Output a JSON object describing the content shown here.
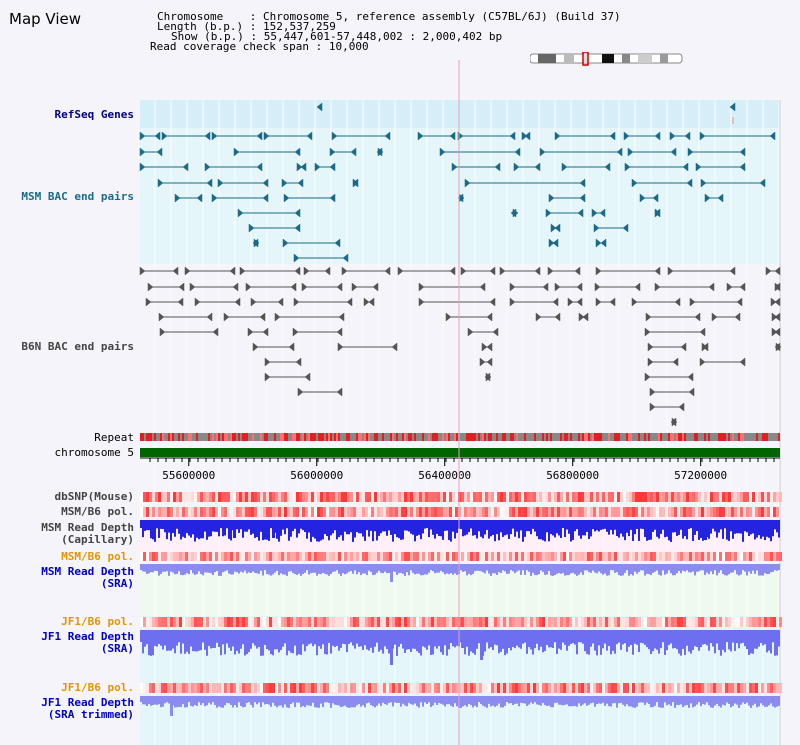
{
  "page": {
    "title": "Map View"
  },
  "info": {
    "chromosome_label": "Chromosome",
    "chromosome_value": "Chromosome 5, reference assembly (C57BL/6J) (Build 37)",
    "length_label": "Length (b.p.)",
    "length_value": "152,537,259",
    "show_label": "Show (b.p.)",
    "show_value": "55,447,601-57,448,002 : 2,000,402 bp",
    "coverage_label": "Read coverage check span",
    "coverage_value": "10,000"
  },
  "tracks": {
    "refseq": {
      "label": "RefSeq Genes",
      "color": "#000080"
    },
    "msm_bac": {
      "label": "MSM BAC end pairs",
      "color": "#1a6b8a"
    },
    "b6n_bac": {
      "label": "B6N BAC end pairs",
      "color": "#444444"
    },
    "repeat": {
      "label": "Repeat"
    },
    "chromosome": {
      "label": "chromosome 5",
      "color": "#006400"
    },
    "dbsnp": {
      "label": "dbSNP(Mouse)"
    },
    "msm_pol": {
      "label": "MSM/B6 pol."
    },
    "msm_depth_cap": {
      "label": "MSM Read Depth\n(Capillary)"
    },
    "msm_pol_sra": {
      "label": "MSM/B6 pol.",
      "color": "#e69500"
    },
    "msm_depth_sra": {
      "label": "MSM Read Depth\n(SRA)",
      "color": "#0000cc"
    },
    "jf1_pol": {
      "label": "JF1/B6 pol.",
      "color": "#e69500"
    },
    "jf1_depth": {
      "label": "JF1 Read Depth\n(SRA)",
      "color": "#0000cc"
    },
    "jf1_pol2": {
      "label": "JF1/B6 pol.",
      "color": "#e69500"
    },
    "jf1_depth_trim": {
      "label": "JF1 Read Depth\n(SRA trimmed)",
      "color": "#0000cc"
    }
  },
  "axis": {
    "ticks": [
      "55600000",
      "56000000",
      "56400000",
      "56800000",
      "57200000"
    ],
    "tick_values": [
      55600000,
      56000000,
      56400000,
      56800000,
      57200000
    ],
    "range": [
      55447601,
      57448002
    ]
  }
}
